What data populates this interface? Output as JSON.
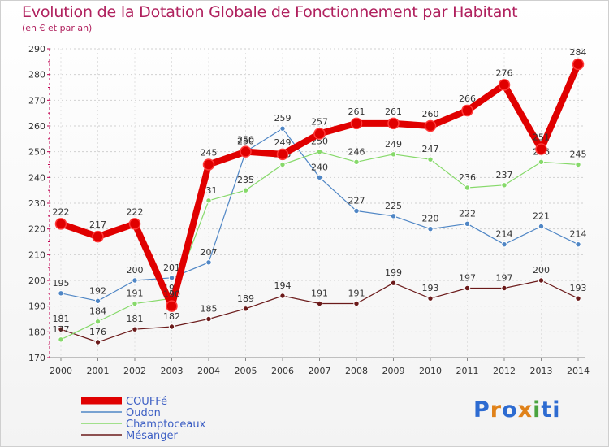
{
  "header": {
    "title": "Evolution de la Dotation Globale de Fonctionnement par Habitant",
    "subtitle": "(en € et par an)"
  },
  "logo": {
    "text": "Proxiti",
    "letters": [
      "P",
      "r",
      "o",
      "x",
      "i",
      "t",
      "i"
    ],
    "colors": [
      "#2d6bd1",
      "#e0821a",
      "#2d6bd1",
      "#e0821a",
      "#4aa33f",
      "#2d6bd1",
      "#2d6bd1"
    ]
  },
  "chart_data": {
    "type": "line",
    "title": "Evolution de la Dotation Globale de Fonctionnement par Habitant",
    "subtitle": "(en € et par an)",
    "xlabel": "",
    "ylabel": "",
    "x": [
      "2000",
      "2001",
      "2002",
      "2003",
      "2004",
      "2005",
      "2006",
      "2007",
      "2008",
      "2009",
      "2010",
      "2011",
      "2012",
      "2013",
      "2014"
    ],
    "ylim": [
      170,
      290
    ],
    "yticks": [
      170,
      180,
      190,
      200,
      210,
      220,
      230,
      240,
      250,
      260,
      270,
      280,
      290
    ],
    "grid": "horizontal-dashed",
    "legend": "bottom-left",
    "series": [
      {
        "name": "COUFFé",
        "color": "#e00000",
        "values": [
          222,
          217,
          222,
          190,
          245,
          250,
          249,
          257,
          261,
          261,
          260,
          266,
          276,
          251,
          284
        ]
      },
      {
        "name": "Oudon",
        "color": "#4f86c5",
        "values": [
          195,
          192,
          200,
          201,
          207,
          250,
          259,
          240,
          227,
          225,
          220,
          222,
          214,
          221,
          214
        ]
      },
      {
        "name": "Champtoceaux",
        "color": "#86d96a",
        "values": [
          177,
          184,
          191,
          193,
          231,
          235,
          245,
          250,
          246,
          249,
          247,
          236,
          237,
          246,
          245
        ]
      },
      {
        "name": "Mésanger",
        "color": "#6b1a1a",
        "values": [
          181,
          176,
          181,
          182,
          185,
          189,
          194,
          191,
          191,
          199,
          193,
          197,
          197,
          200,
          193
        ]
      }
    ]
  }
}
